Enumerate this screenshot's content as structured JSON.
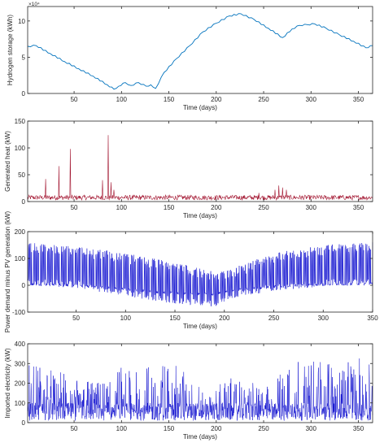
{
  "chart_data": [
    {
      "type": "line",
      "xlabel": "Time (days)",
      "ylabel": "Hydrogen storage (kWh)",
      "y_exponent_label": "×10⁴",
      "xlim": [
        1,
        365
      ],
      "ylim": [
        0,
        12
      ],
      "xticks": [
        50,
        100,
        150,
        200,
        250,
        300,
        350
      ],
      "yticks": [
        0,
        5,
        10
      ],
      "series": [
        {
          "color": "#0072BD",
          "x": [
            1,
            10,
            25,
            40,
            55,
            70,
            85,
            92,
            97,
            104,
            110,
            118,
            126,
            131,
            136,
            145,
            158,
            172,
            186,
            200,
            214,
            226,
            240,
            255,
            270,
            280,
            288,
            296,
            304,
            316,
            330,
            345,
            358,
            365
          ],
          "y": [
            6.5,
            6.6,
            5.5,
            4.4,
            3.4,
            2.4,
            1.2,
            0.6,
            1.0,
            1.5,
            1.1,
            1.5,
            1.0,
            1.2,
            0.7,
            2.9,
            4.8,
            6.6,
            8.5,
            9.7,
            10.7,
            11.0,
            10.2,
            9.0,
            7.7,
            8.9,
            9.4,
            9.5,
            9.6,
            9.0,
            8.1,
            7.2,
            6.3,
            6.6
          ]
        }
      ]
    },
    {
      "type": "line",
      "xlabel": "Time (days)",
      "ylabel": "Generated heat (kW)",
      "xlim": [
        1,
        365
      ],
      "ylim": [
        0,
        150
      ],
      "xticks": [
        50,
        100,
        150,
        200,
        250,
        300,
        350
      ],
      "yticks": [
        0,
        50,
        100,
        150
      ],
      "series": [
        {
          "color": "#A2142F",
          "baseline_range": [
            3,
            12
          ],
          "spikes": [
            [
              20,
              42
            ],
            [
              34,
              66
            ],
            [
              46,
              98
            ],
            [
              80,
              40
            ],
            [
              86,
              124
            ],
            [
              89,
              36
            ],
            [
              92,
              22
            ],
            [
              245,
              16
            ],
            [
              262,
              22
            ],
            [
              266,
              30
            ],
            [
              270,
              26
            ],
            [
              274,
              22
            ]
          ]
        }
      ]
    },
    {
      "type": "line",
      "xlabel": "Time (days)",
      "ylabel": "Power demand minus PV generation (kW)",
      "xlim": [
        1,
        350
      ],
      "ylim": [
        -100,
        200
      ],
      "xticks": [
        50,
        100,
        150,
        200,
        250,
        300,
        350
      ],
      "yticks": [
        -100,
        0,
        100,
        200
      ],
      "series": [
        {
          "color": "#0000CC",
          "upper_envelope": [
            [
              1,
              160
            ],
            [
              50,
              145
            ],
            [
              100,
              120
            ],
            [
              150,
              85
            ],
            [
              190,
              50
            ],
            [
              205,
              60
            ],
            [
              250,
              120
            ],
            [
              300,
              150
            ],
            [
              350,
              160
            ]
          ],
          "lower_envelope": [
            [
              1,
              0
            ],
            [
              50,
              -10
            ],
            [
              100,
              -40
            ],
            [
              150,
              -70
            ],
            [
              190,
              -80
            ],
            [
              205,
              -50
            ],
            [
              250,
              -20
            ],
            [
              300,
              -5
            ],
            [
              350,
              0
            ]
          ]
        }
      ]
    },
    {
      "type": "line",
      "xlabel": "Time (days)",
      "ylabel": "Imported electricity (kW)",
      "xlim": [
        1,
        365
      ],
      "ylim": [
        0,
        400
      ],
      "xticks": [
        50,
        100,
        150,
        200,
        250,
        300,
        350
      ],
      "yticks": [
        0,
        100,
        200,
        300,
        400
      ],
      "series": [
        {
          "color": "#0000CC",
          "peak_envelope": [
            [
              1,
              310
            ],
            [
              40,
              250
            ],
            [
              80,
              200
            ],
            [
              100,
              290
            ],
            [
              150,
              300
            ],
            [
              175,
              260
            ],
            [
              190,
              120
            ],
            [
              210,
              230
            ],
            [
              260,
              180
            ],
            [
              275,
              330
            ],
            [
              300,
              320
            ],
            [
              330,
              310
            ],
            [
              365,
              340
            ]
          ]
        }
      ]
    }
  ]
}
